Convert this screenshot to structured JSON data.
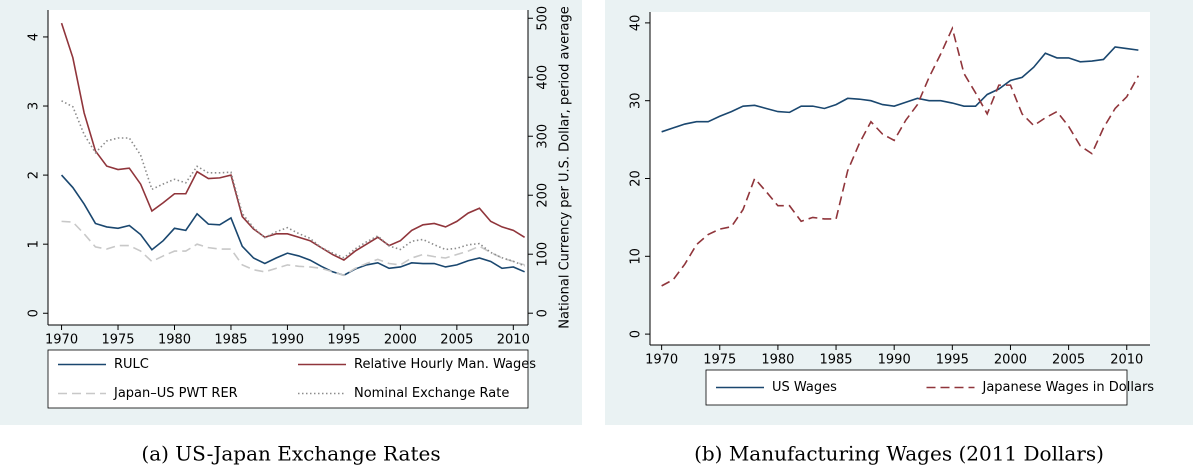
{
  "chart_data": [
    {
      "type": "line",
      "caption": "(a) US-Japan Exchange Rates",
      "y2label": "National Currency per U.S. Dollar, period average",
      "x": [
        1970,
        1971,
        1972,
        1973,
        1974,
        1975,
        1976,
        1977,
        1978,
        1979,
        1980,
        1981,
        1982,
        1983,
        1984,
        1985,
        1986,
        1987,
        1988,
        1989,
        1990,
        1991,
        1992,
        1993,
        1994,
        1995,
        1996,
        1997,
        1998,
        1999,
        2000,
        2001,
        2002,
        2003,
        2004,
        2005,
        2006,
        2007,
        2008,
        2009,
        2010,
        2011
      ],
      "xlim": [
        1968.8,
        2011.3
      ],
      "xticks": [
        1970,
        1975,
        1980,
        1985,
        1990,
        1995,
        2000,
        2005,
        2010
      ],
      "ylim": [
        -0.17,
        4.39
      ],
      "yticks": [
        0,
        1,
        2,
        3,
        4
      ],
      "y2lim": [
        -20,
        514
      ],
      "y2ticks": [
        0,
        100,
        200,
        300,
        400,
        500
      ],
      "legend_columns": 2,
      "series": [
        {
          "name": "RULC",
          "color": "#1a476f",
          "line_style": "solid",
          "values": [
            2.0,
            1.82,
            1.58,
            1.3,
            1.25,
            1.23,
            1.27,
            1.14,
            0.92,
            1.05,
            1.23,
            1.2,
            1.44,
            1.29,
            1.28,
            1.38,
            0.97,
            0.8,
            0.72,
            0.8,
            0.87,
            0.83,
            0.77,
            0.68,
            0.6,
            0.55,
            0.64,
            0.7,
            0.73,
            0.65,
            0.67,
            0.73,
            0.72,
            0.72,
            0.67,
            0.7,
            0.76,
            0.8,
            0.75,
            0.65,
            0.67,
            0.6
          ]
        },
        {
          "name": "Relative Hourly Man. Wages",
          "color": "#90353b",
          "line_style": "solid",
          "values": [
            4.2,
            3.7,
            2.9,
            2.35,
            2.13,
            2.08,
            2.1,
            1.87,
            1.48,
            1.6,
            1.73,
            1.73,
            2.05,
            1.95,
            1.96,
            2.0,
            1.4,
            1.22,
            1.1,
            1.15,
            1.15,
            1.1,
            1.05,
            0.95,
            0.85,
            0.77,
            0.9,
            1.0,
            1.1,
            0.98,
            1.05,
            1.2,
            1.28,
            1.3,
            1.25,
            1.33,
            1.45,
            1.52,
            1.33,
            1.25,
            1.2,
            1.1
          ]
        },
        {
          "name": "Japan–US PWT RER",
          "color": "#c8c8c8",
          "line_style": "dashed",
          "values": [
            1.33,
            1.32,
            1.15,
            0.96,
            0.93,
            0.98,
            0.98,
            0.9,
            0.75,
            0.83,
            0.9,
            0.9,
            1.0,
            0.95,
            0.93,
            0.93,
            0.7,
            0.63,
            0.6,
            0.65,
            0.7,
            0.68,
            0.67,
            0.65,
            0.6,
            0.55,
            0.65,
            0.72,
            0.78,
            0.72,
            0.7,
            0.8,
            0.85,
            0.82,
            0.8,
            0.85,
            0.9,
            0.97,
            0.88,
            0.8,
            0.75,
            0.7
          ]
        },
        {
          "name": "Nominal Exchange Rate",
          "color": "#8c8c8c",
          "line_style": "dotted",
          "axis": "y2",
          "values": [
            360,
            350,
            303,
            272,
            292,
            297,
            297,
            268,
            210,
            219,
            227,
            221,
            249,
            238,
            238,
            239,
            169,
            145,
            128,
            138,
            145,
            135,
            127,
            111,
            102,
            94,
            109,
            121,
            131,
            114,
            108,
            122,
            125,
            116,
            108,
            110,
            116,
            118,
            103,
            94,
            88,
            80
          ]
        }
      ]
    },
    {
      "type": "line",
      "caption": "(b) Manufacturing Wages (2011 Dollars)",
      "x": [
        1970,
        1971,
        1972,
        1973,
        1974,
        1975,
        1976,
        1977,
        1978,
        1979,
        1980,
        1981,
        1982,
        1983,
        1984,
        1985,
        1986,
        1987,
        1988,
        1989,
        1990,
        1991,
        1992,
        1993,
        1994,
        1995,
        1996,
        1997,
        1998,
        1999,
        2000,
        2001,
        2002,
        2003,
        2004,
        2005,
        2006,
        2007,
        2008,
        2009,
        2010,
        2011
      ],
      "xlim": [
        1969,
        2012
      ],
      "xticks": [
        1970,
        1975,
        1980,
        1985,
        1990,
        1995,
        2000,
        2005,
        2010
      ],
      "ylim": [
        -1.4,
        41.4
      ],
      "yticks": [
        0,
        10,
        20,
        30,
        40
      ],
      "legend_columns": 2,
      "series": [
        {
          "name": "US Wages",
          "color": "#1a476f",
          "line_style": "solid",
          "values": [
            26,
            26.5,
            27,
            27.3,
            27.3,
            28,
            28.6,
            29.3,
            29.4,
            29,
            28.6,
            28.5,
            29.3,
            29.3,
            29,
            29.5,
            30.3,
            30.2,
            30,
            29.5,
            29.3,
            29.8,
            30.3,
            30,
            30,
            29.7,
            29.3,
            29.3,
            30.8,
            31.5,
            32.6,
            33,
            34.3,
            36.1,
            35.5,
            35.5,
            35,
            35.1,
            35.3,
            36.9,
            36.7,
            36.5
          ]
        },
        {
          "name": "Japanese Wages in Dollars",
          "color": "#90353b",
          "line_style": "dashed",
          "values": [
            6.2,
            7,
            9,
            11.5,
            12.8,
            13.5,
            13.8,
            16,
            20,
            18.3,
            16.5,
            16.5,
            14.5,
            15,
            14.8,
            14.8,
            21,
            24.5,
            27.3,
            25.7,
            24.9,
            27.5,
            29.5,
            33,
            36,
            39.3,
            33.5,
            31,
            28.3,
            32,
            32,
            28.3,
            26.8,
            27.8,
            28.6,
            26.7,
            24.2,
            23.2,
            26.5,
            29,
            30.5,
            33.2
          ]
        }
      ]
    }
  ]
}
